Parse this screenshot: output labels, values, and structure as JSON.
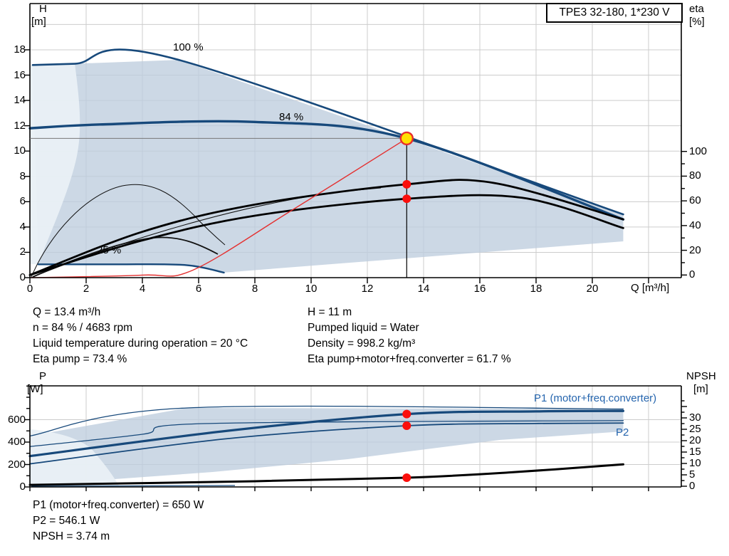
{
  "title_box": "TPE3 32-180, 1*230 V",
  "axes": {
    "top_left": {
      "name": "H",
      "unit": "[m]"
    },
    "top_right": {
      "name": "eta",
      "unit": "[%]"
    },
    "bottom_left": {
      "name": "P",
      "unit": "[W]"
    },
    "bottom_right": {
      "name": "NPSH",
      "unit": "[m]"
    },
    "x": {
      "label": "Q [m³/h]"
    }
  },
  "curve_labels": {
    "p100": "100 %",
    "p84": "84 %",
    "p25": "25 %",
    "p1": "P1 (motor+freq.converter)",
    "p2": "P2"
  },
  "info_left": [
    "Q = 13.4 m³/h",
    "n = 84 % / 4683 rpm",
    "Liquid temperature during operation = 20 °C",
    "Eta pump = 73.4 %"
  ],
  "info_right": [
    "H = 11 m",
    "Pumped liquid = Water",
    "Density = 998.2 kg/m³",
    "Eta pump+motor+freq.converter = 61.7 %"
  ],
  "info_bottom": [
    "P1 (motor+freq.converter) = 650 W",
    "P2 = 546.1 W",
    "NPSH = 3.74 m"
  ],
  "colors": {
    "curve_blue": "#17497b",
    "label_blue": "#2565ae",
    "field": "#d3dce6",
    "field_light": "#e9f0f6",
    "red": "#e43030",
    "marker_red": "#fb0f0c",
    "marker_yellow": "#ffdf00",
    "grid": "#cccccc"
  },
  "chart_data": [
    {
      "type": "line",
      "title": "TPE3 32-180, 1*230 V",
      "xlabel": "Q [m³/h]",
      "ylabel_left": "H [m]",
      "ylabel_right": "eta [%]",
      "xlim": [
        0,
        23.2
      ],
      "ylim_left": [
        0,
        21.7
      ],
      "ylim_right": [
        0,
        108
      ],
      "x_ticks": [
        0,
        2,
        4,
        6,
        8,
        10,
        12,
        14,
        16,
        18,
        20
      ],
      "y_ticks_left": [
        0,
        2,
        4,
        6,
        8,
        10,
        12,
        14,
        16,
        18
      ],
      "y_ticks_right": [
        0,
        20,
        40,
        60,
        80,
        100
      ],
      "grid": true,
      "series": [
        {
          "name": "head_100pct",
          "label": "100 %",
          "axis": "left",
          "points": [
            [
              0.1,
              16.8
            ],
            [
              1.6,
              16.9
            ],
            [
              5.3,
              17.2
            ],
            [
              21.1,
              5.0
            ]
          ]
        },
        {
          "name": "head_84pct",
          "label": "84 %",
          "axis": "left",
          "points": [
            [
              0,
              11.8
            ],
            [
              2.5,
              12.1
            ],
            [
              8,
              12.3
            ],
            [
              13.4,
              11.0
            ],
            [
              21.1,
              4.6
            ]
          ]
        },
        {
          "name": "head_25pct",
          "label": "25 %",
          "axis": "left",
          "points": [
            [
              0.3,
              1.05
            ],
            [
              3,
              1.05
            ],
            [
              5.5,
              1.0
            ],
            [
              6.9,
              0.4
            ]
          ]
        },
        {
          "name": "eta_pump",
          "axis": "right",
          "points": [
            [
              0,
              0
            ],
            [
              4,
              35
            ],
            [
              8,
              57
            ],
            [
              13.4,
              73.4
            ],
            [
              16.5,
              74.5
            ],
            [
              21.1,
              45
            ]
          ]
        },
        {
          "name": "eta_pump_motor_freq_converter",
          "axis": "right",
          "points": [
            [
              0,
              0
            ],
            [
              4,
              28
            ],
            [
              8,
              48
            ],
            [
              13.4,
              61.7
            ],
            [
              17.5,
              62.5
            ],
            [
              21.1,
              38
            ]
          ]
        },
        {
          "name": "control_curve",
          "axis": "left",
          "points": [
            [
              0,
              0
            ],
            [
              4,
              0.2
            ],
            [
              5.8,
              0.6
            ],
            [
              9.3,
              5.3
            ],
            [
              13.4,
              11.0
            ]
          ]
        }
      ],
      "field_lower_points": [
        [
          0.3,
          1.05
        ],
        [
          3,
          1.05
        ],
        [
          5.5,
          1.0
        ],
        [
          6.9,
          0.4
        ],
        [
          21.1,
          2.87
        ]
      ],
      "operating_point": {
        "Q": 13.4,
        "H": 11,
        "eta_pump": 73.4,
        "eta_total": 61.7
      }
    },
    {
      "type": "line",
      "xlabel": "Q [m³/h]",
      "ylabel_left": "P [W]",
      "ylabel_right": "NPSH [m]",
      "xlim": [
        0,
        23.2
      ],
      "ylim_left": [
        0,
        900
      ],
      "ylim_right": [
        0,
        35
      ],
      "y_ticks_left": [
        0,
        200,
        400,
        600
      ],
      "y_ticks_right": [
        0,
        5,
        10,
        15,
        20,
        25,
        30
      ],
      "grid": true,
      "series": [
        {
          "name": "P1_100pct",
          "axis": "left",
          "points": [
            [
              0,
              455
            ],
            [
              5.6,
              705
            ],
            [
              21.1,
              695
            ]
          ]
        },
        {
          "name": "P2_100pct",
          "axis": "left",
          "points": [
            [
              0,
              360
            ],
            [
              4,
              470
            ],
            [
              6.2,
              565
            ],
            [
              21.1,
              592
            ]
          ]
        },
        {
          "name": "P1_84pct",
          "label": "P1 (motor+freq.converter)",
          "axis": "left",
          "points": [
            [
              0,
              275
            ],
            [
              7,
              500
            ],
            [
              13.4,
              650
            ],
            [
              18,
              674
            ],
            [
              21.1,
              678
            ]
          ]
        },
        {
          "name": "P2_84pct",
          "label": "P2",
          "axis": "left",
          "points": [
            [
              0,
              206
            ],
            [
              7,
              430
            ],
            [
              13.4,
              546.1
            ],
            [
              18,
              566
            ],
            [
              21.1,
              570
            ]
          ]
        },
        {
          "name": "NPSH",
          "axis": "right",
          "points": [
            [
              0,
              0.6
            ],
            [
              8,
              2.2
            ],
            [
              13.4,
              3.74
            ],
            [
              17,
              6
            ],
            [
              21.1,
              9.6
            ]
          ]
        }
      ],
      "field_lower_points": [
        [
          0,
          19
        ],
        [
          2.7,
          64
        ],
        [
          6.5,
          133
        ],
        [
          11.3,
          248
        ],
        [
          16.7,
          419
        ],
        [
          21.1,
          495
        ]
      ],
      "operating_point": {
        "Q": 13.4,
        "P1": 650,
        "P2": 546.1,
        "NPSH": 3.74
      }
    }
  ]
}
